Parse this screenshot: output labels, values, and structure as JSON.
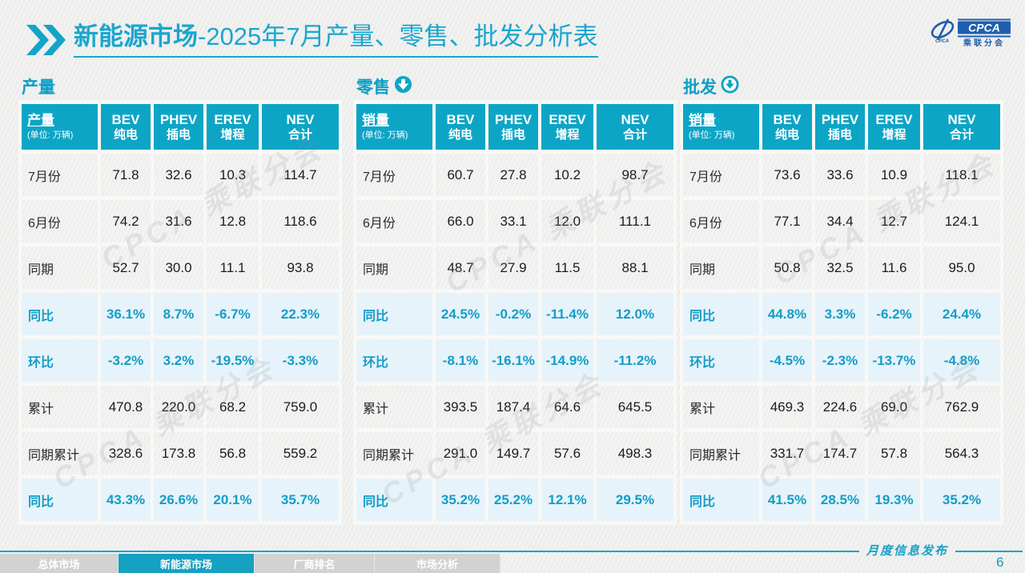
{
  "title": {
    "bold": "新能源市场",
    "rest": "-2025年7月产量、零售、批发分析表"
  },
  "logo": {
    "cpca": "CPCA",
    "small_cpca": "CPCA",
    "org": "乘联分会"
  },
  "unit_note": "(单位: 万辆)",
  "columns": [
    {
      "en": "BEV",
      "cn": "纯电"
    },
    {
      "en": "PHEV",
      "cn": "插电"
    },
    {
      "en": "EREV",
      "cn": "增程"
    },
    {
      "en": "NEV",
      "cn": "合计"
    }
  ],
  "tables": [
    {
      "section": "产量",
      "icon": "none",
      "first_col_label": "产量",
      "rows": [
        {
          "label": "7月份",
          "pct": false,
          "values": [
            "71.8",
            "32.6",
            "10.3",
            "114.7"
          ]
        },
        {
          "label": "6月份",
          "pct": false,
          "values": [
            "74.2",
            "31.6",
            "12.8",
            "118.6"
          ]
        },
        {
          "label": "同期",
          "pct": false,
          "values": [
            "52.7",
            "30.0",
            "11.1",
            "93.8"
          ]
        },
        {
          "label": "同比",
          "pct": true,
          "values": [
            "36.1%",
            "8.7%",
            "-6.7%",
            "22.3%"
          ]
        },
        {
          "label": "环比",
          "pct": true,
          "values": [
            "-3.2%",
            "3.2%",
            "-19.5%",
            "-3.3%"
          ]
        },
        {
          "label": "累计",
          "pct": false,
          "values": [
            "470.8",
            "220.0",
            "68.2",
            "759.0"
          ]
        },
        {
          "label": "同期累计",
          "pct": false,
          "values": [
            "328.6",
            "173.8",
            "56.8",
            "559.2"
          ]
        },
        {
          "label": "同比",
          "pct": true,
          "values": [
            "43.3%",
            "26.6%",
            "20.1%",
            "35.7%"
          ]
        }
      ]
    },
    {
      "section": "零售",
      "icon": "circle-arrow-down-filled",
      "first_col_label": "销量",
      "rows": [
        {
          "label": "7月份",
          "pct": false,
          "values": [
            "60.7",
            "27.8",
            "10.2",
            "98.7"
          ]
        },
        {
          "label": "6月份",
          "pct": false,
          "values": [
            "66.0",
            "33.1",
            "12.0",
            "111.1"
          ]
        },
        {
          "label": "同期",
          "pct": false,
          "values": [
            "48.7",
            "27.9",
            "11.5",
            "88.1"
          ]
        },
        {
          "label": "同比",
          "pct": true,
          "values": [
            "24.5%",
            "-0.2%",
            "-11.4%",
            "12.0%"
          ]
        },
        {
          "label": "环比",
          "pct": true,
          "values": [
            "-8.1%",
            "-16.1%",
            "-14.9%",
            "-11.2%"
          ]
        },
        {
          "label": "累计",
          "pct": false,
          "values": [
            "393.5",
            "187.4",
            "64.6",
            "645.5"
          ]
        },
        {
          "label": "同期累计",
          "pct": false,
          "values": [
            "291.0",
            "149.7",
            "57.6",
            "498.3"
          ]
        },
        {
          "label": "同比",
          "pct": true,
          "values": [
            "35.2%",
            "25.2%",
            "12.1%",
            "29.5%"
          ]
        }
      ]
    },
    {
      "section": "批发",
      "icon": "circle-arrow-down-ring",
      "first_col_label": "销量",
      "rows": [
        {
          "label": "7月份",
          "pct": false,
          "values": [
            "73.6",
            "33.6",
            "10.9",
            "118.1"
          ]
        },
        {
          "label": "6月份",
          "pct": false,
          "values": [
            "77.1",
            "34.4",
            "12.7",
            "124.1"
          ]
        },
        {
          "label": "同期",
          "pct": false,
          "values": [
            "50.8",
            "32.5",
            "11.6",
            "95.0"
          ]
        },
        {
          "label": "同比",
          "pct": true,
          "values": [
            "44.8%",
            "3.3%",
            "-6.2%",
            "24.4%"
          ]
        },
        {
          "label": "环比",
          "pct": true,
          "values": [
            "-4.5%",
            "-2.3%",
            "-13.7%",
            "-4.8%"
          ]
        },
        {
          "label": "累计",
          "pct": false,
          "values": [
            "469.3",
            "224.6",
            "69.0",
            "762.9"
          ]
        },
        {
          "label": "同期累计",
          "pct": false,
          "values": [
            "331.7",
            "174.7",
            "57.8",
            "564.3"
          ]
        },
        {
          "label": "同比",
          "pct": true,
          "values": [
            "41.5%",
            "28.5%",
            "19.3%",
            "35.2%"
          ]
        }
      ]
    }
  ],
  "footer": {
    "publish_label": "月度信息发布",
    "page_number": "6",
    "tabs": [
      {
        "label": "总体市场",
        "active": false
      },
      {
        "label": "新能源市场",
        "active": true
      },
      {
        "label": "厂商排名",
        "active": false
      },
      {
        "label": "市场分析",
        "active": false
      }
    ]
  },
  "watermark": "CPCA 乘联分会",
  "colors": {
    "teal": "#0da5c6",
    "title_teal": "#1aa6ce",
    "pct_row_bg": "#e6f3fa",
    "pct_text": "#149dc6",
    "logo_blue": "#1d5fae",
    "tab_gray": "#d2d2d1"
  }
}
